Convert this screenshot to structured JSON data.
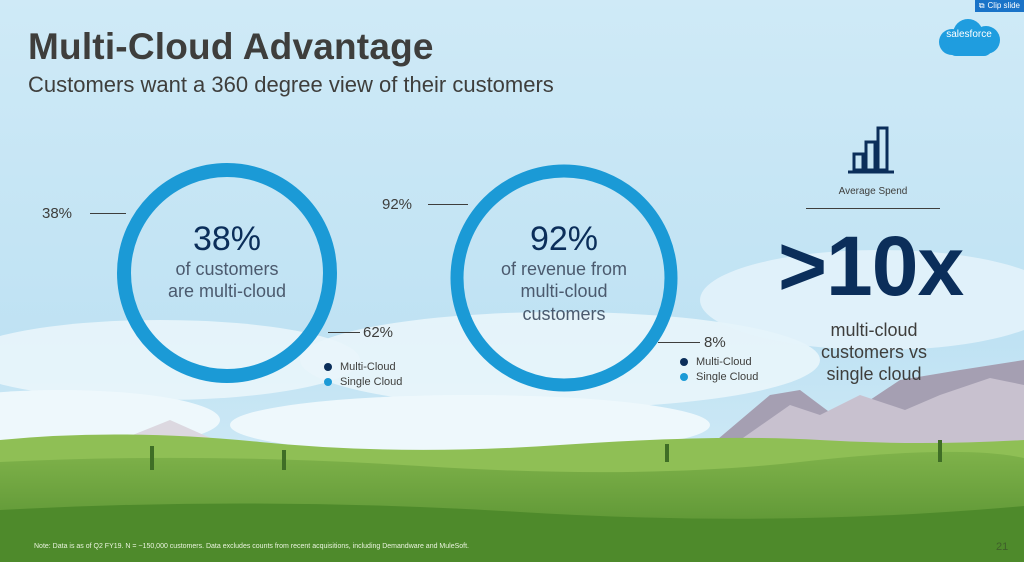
{
  "toolbar": {
    "clip_label": "Clip slide"
  },
  "slide": {
    "title": "Multi-Cloud Advantage",
    "subtitle": "Customers want a 360 degree view of their customers",
    "logo_text": "salesforce",
    "note": "Note: Data is as of Q2 FY19. N = ~150,000 customers. Data excludes counts from recent acquisitions, including Demandware and MuleSoft.",
    "page_number": "21"
  },
  "donut1": {
    "big": "38%",
    "line1": "of customers",
    "line2": "are multi-cloud",
    "label_multi": "38%",
    "label_single": "62%",
    "legend_multi": "Multi-Cloud",
    "legend_single": "Single Cloud",
    "multi_fraction": 0.38
  },
  "donut2": {
    "big": "92%",
    "line1": "of revenue from",
    "line2": "multi-cloud",
    "line3": "customers",
    "label_multi": "92%",
    "label_single": "8%",
    "legend_multi": "Multi-Cloud",
    "legend_single": "Single Cloud",
    "multi_fraction": 0.92
  },
  "spend": {
    "label": "Average Spend",
    "big": ">10x",
    "line1": "multi-cloud",
    "line2": "customers vs",
    "line3": "single cloud"
  },
  "colors": {
    "multi": "#0b2e5a",
    "single": "#1b9ad6"
  }
}
